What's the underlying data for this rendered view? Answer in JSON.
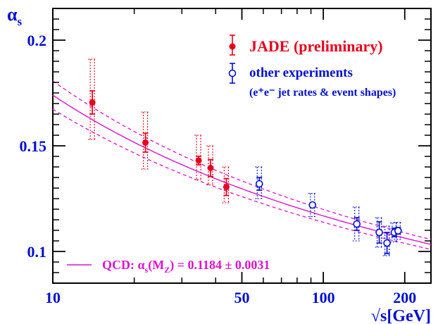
{
  "chart_data": {
    "type": "scatter",
    "title": "",
    "ylabel": "α",
    "ylabel_sub": "s",
    "xlabel": "√s[GeV]",
    "x_scale": "log",
    "xlim": [
      10,
      250
    ],
    "ylim": [
      0.085,
      0.215
    ],
    "x_ticks": [
      {
        "value": 10,
        "label": "10"
      },
      {
        "value": 50,
        "label": "50"
      },
      {
        "value": 100,
        "label": "100"
      },
      {
        "value": 200,
        "label": "200"
      }
    ],
    "y_ticks": [
      {
        "value": 0.1,
        "label": "0.1"
      },
      {
        "value": 0.15,
        "label": "0.15"
      },
      {
        "value": 0.2,
        "label": "0.2"
      }
    ],
    "grid": false,
    "legend_position": "top-right",
    "series": [
      {
        "name": "JADE (preliminary)",
        "color": "#e8001c",
        "marker": "filled-circle",
        "points": [
          {
            "x": 14.0,
            "y": 0.1705,
            "stat": [
              0.0055,
              0.0055
            ],
            "tot": [
              0.0205,
              0.0175
            ]
          },
          {
            "x": 22.0,
            "y": 0.1515,
            "stat": [
              0.0045,
              0.0045
            ],
            "tot": [
              0.0145,
              0.0125
            ]
          },
          {
            "x": 34.6,
            "y": 0.143,
            "stat": [
              0.002,
              0.002
            ],
            "tot": [
              0.012,
              0.009
            ]
          },
          {
            "x": 38.3,
            "y": 0.1395,
            "stat": [
              0.004,
              0.004
            ],
            "tot": [
              0.0105,
              0.008
            ]
          },
          {
            "x": 43.8,
            "y": 0.1305,
            "stat": [
              0.004,
              0.004
            ],
            "tot": [
              0.0095,
              0.0075
            ]
          }
        ]
      },
      {
        "name": "other experiments",
        "name_note": "(e⁺e⁻ jet rates & event shapes)",
        "color": "#0010d0",
        "marker": "open-circle",
        "points": [
          {
            "x": 58.0,
            "y": 0.132,
            "stat": [
              0.003,
              0.003
            ],
            "tot": [
              0.008,
              0.007
            ]
          },
          {
            "x": 91.2,
            "y": 0.122,
            "stat": [
              0.0008,
              0.0008
            ],
            "tot": [
              0.0055,
              0.0055
            ]
          },
          {
            "x": 133.0,
            "y": 0.113,
            "stat": [
              0.003,
              0.003
            ],
            "tot": [
              0.008,
              0.008
            ]
          },
          {
            "x": 161.0,
            "y": 0.109,
            "stat": [
              0.005,
              0.005
            ],
            "tot": [
              0.007,
              0.007
            ]
          },
          {
            "x": 172.0,
            "y": 0.104,
            "stat": [
              0.005,
              0.005
            ],
            "tot": [
              0.008,
              0.006
            ]
          },
          {
            "x": 183.0,
            "y": 0.109,
            "stat": [
              0.002,
              0.002
            ],
            "tot": [
              0.0045,
              0.0045
            ]
          },
          {
            "x": 189.0,
            "y": 0.1098,
            "stat": [
              0.0015,
              0.0015
            ],
            "tot": [
              0.004,
              0.004
            ]
          }
        ]
      }
    ],
    "fit": {
      "label_prefix": "QCD: α",
      "label_sub": "s",
      "label_mid": "(M",
      "label_sub2": "Z",
      "label_suffix": ") = 0.1184 ± 0.0031",
      "color": "#e010d0",
      "alpha_mz": 0.1184,
      "uncertainty": 0.0031,
      "mz": 91.1876
    }
  }
}
